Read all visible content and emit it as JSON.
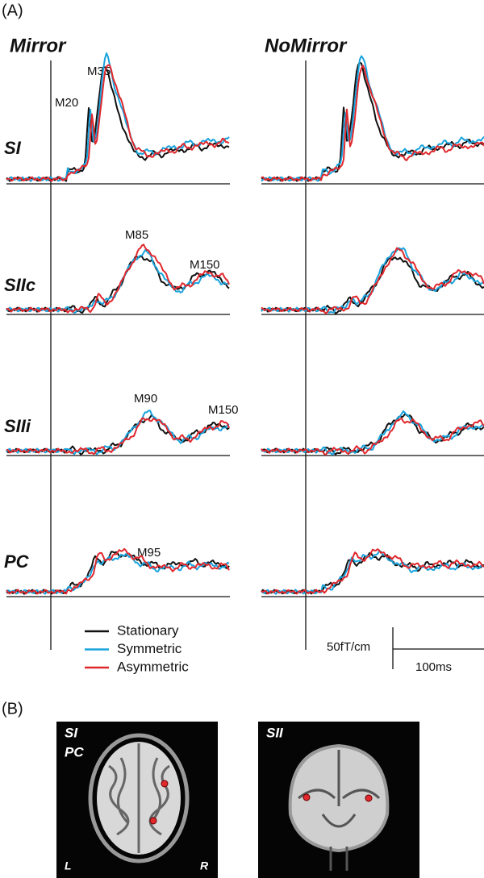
{
  "panel_a": {
    "label": "(A)",
    "conditions": [
      "Mirror",
      "NoMirror"
    ],
    "rows": [
      "SI",
      "SIIc",
      "SIIi",
      "PC"
    ],
    "peaks": [
      "M20",
      "M35",
      "M85",
      "M150",
      "M90",
      "M150",
      "M95"
    ],
    "legend": [
      {
        "name": "Stationary",
        "color": "#111111"
      },
      {
        "name": "Symmetric",
        "color": "#1aa3dd"
      },
      {
        "name": "Asymmetric",
        "color": "#e0282d"
      }
    ],
    "scale_amplitude": "50fT/cm",
    "scale_time": "100ms"
  },
  "panel_b": {
    "label": "(B)",
    "images": [
      {
        "labels": [
          "SI",
          "PC"
        ],
        "left": "L",
        "right": "R"
      },
      {
        "labels": [
          "SII"
        ]
      }
    ]
  }
}
